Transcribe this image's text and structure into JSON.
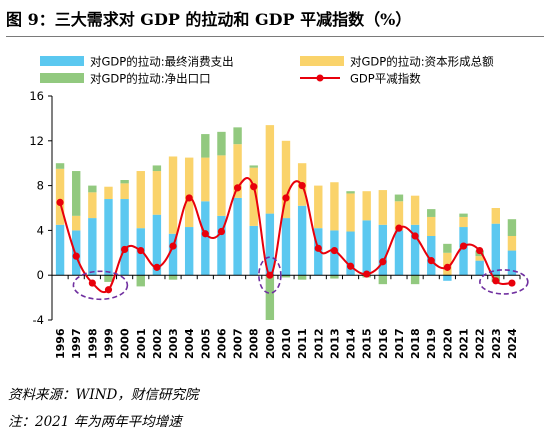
{
  "title": "图 9：三大需求对 GDP 的拉动和 GDP 平减指数（%）",
  "source": "资料来源：WIND，财信研究院",
  "footnote": "注：2021 年为两年平均增速",
  "colors": {
    "consumption": "#5bc8f0",
    "capital": "#fad36b",
    "net_exports": "#92c97f",
    "deflator": "#e8000b",
    "highlight": "#7030a0",
    "axis": "#000000"
  },
  "chart_data": {
    "type": "bar",
    "stacked": true,
    "title": "",
    "xlabel": "",
    "ylabel": "",
    "ylim": [
      -4,
      16
    ],
    "yticks": [
      -4,
      0,
      4,
      8,
      12,
      16
    ],
    "grid": false,
    "legend_position": "top",
    "categories": [
      "1996",
      "1997",
      "1998",
      "1999",
      "2000",
      "2001",
      "2002",
      "2003",
      "2004",
      "2005",
      "2006",
      "2007",
      "2008",
      "2009",
      "2010",
      "2011",
      "2012",
      "2013",
      "2014",
      "2015",
      "2016",
      "2017",
      "2018",
      "2019",
      "2020",
      "2021",
      "2022",
      "2023",
      "2024"
    ],
    "series": [
      {
        "name": "对GDP的拉动:最终消费支出",
        "kind": "bar",
        "values": [
          4.5,
          4.0,
          5.1,
          6.8,
          6.8,
          4.2,
          5.4,
          3.7,
          4.3,
          6.6,
          5.3,
          6.9,
          4.4,
          5.5,
          5.1,
          6.2,
          4.2,
          4.0,
          3.9,
          4.9,
          4.5,
          4.0,
          4.5,
          3.5,
          -0.5,
          4.3,
          1.3,
          4.6,
          2.2
        ]
      },
      {
        "name": "对GDP的拉动:资本形成总额",
        "kind": "bar",
        "values": [
          5.0,
          1.3,
          2.3,
          1.1,
          1.4,
          5.1,
          3.9,
          6.9,
          6.2,
          3.9,
          5.4,
          4.8,
          5.2,
          7.9,
          6.9,
          3.8,
          3.8,
          4.3,
          3.4,
          2.6,
          3.1,
          2.6,
          2.6,
          1.7,
          2.0,
          0.9,
          0.4,
          1.4,
          1.3
        ]
      },
      {
        "name": "对GDP的拉动:净出口口",
        "kind": "bar",
        "values": [
          0.5,
          4.0,
          0.6,
          -0.6,
          0.3,
          -1.0,
          0.5,
          -0.4,
          0.0,
          2.1,
          2.1,
          1.5,
          0.2,
          -4.0,
          -0.2,
          -0.4,
          0.0,
          -0.3,
          0.2,
          -0.2,
          -0.8,
          0.6,
          -0.8,
          0.7,
          0.8,
          0.3,
          0.5,
          -0.6,
          1.5
        ]
      },
      {
        "name": "GDP平减指数",
        "kind": "line",
        "values": [
          6.5,
          1.7,
          -0.7,
          -1.3,
          2.3,
          2.2,
          0.7,
          2.6,
          6.9,
          3.7,
          3.9,
          7.8,
          7.9,
          0.0,
          6.9,
          8.0,
          2.4,
          2.2,
          0.8,
          0.1,
          1.2,
          4.2,
          3.5,
          1.3,
          0.7,
          2.6,
          2.2,
          -0.5,
          -0.7
        ]
      }
    ],
    "highlighted_years": [
      "1998-1999",
      "2009",
      "2023-2024"
    ]
  }
}
